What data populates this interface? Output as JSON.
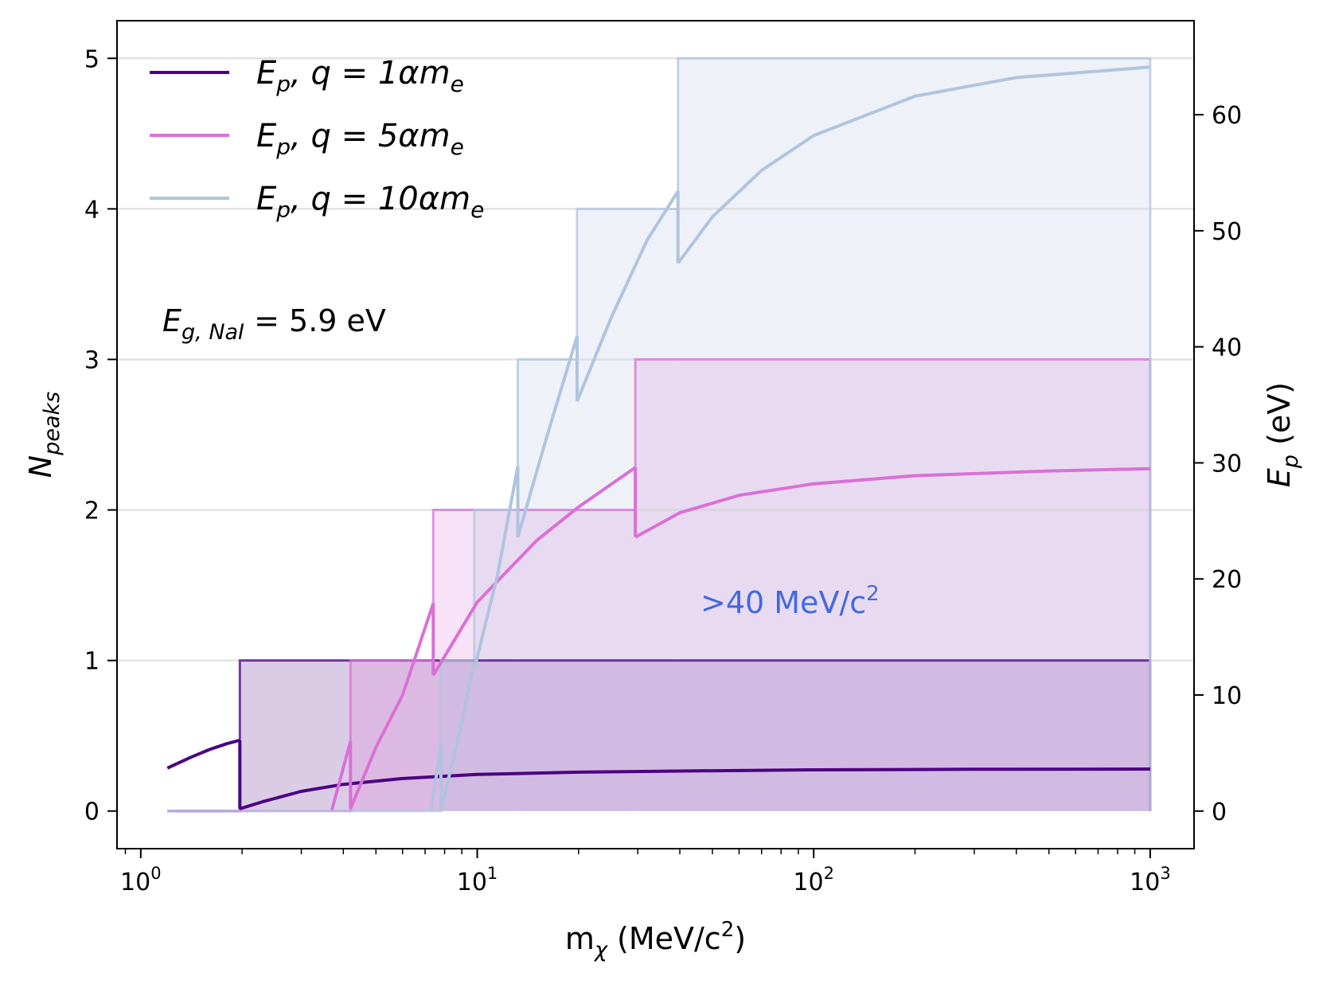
{
  "chart_data": {
    "type": "line",
    "title": "",
    "xlabel": "m_χ (MeV/c²)",
    "xlabel_parts": {
      "main": "m",
      "sub": "χ",
      "rest": " (MeV/c",
      "sup": "2",
      "close": ")"
    },
    "ylabel_left": {
      "main": "N",
      "sub": "peaks"
    },
    "ylabel_right": {
      "main": "E",
      "sub": "p",
      "rest": " (eV)"
    },
    "x_scale": "log",
    "xlim": [
      0.85,
      1350
    ],
    "ylim_left": [
      -0.25,
      5.25
    ],
    "ylim_right": [
      -3.24,
      68.1
    ],
    "x_ticks": [
      {
        "value": 1,
        "base": "10",
        "exp": "0"
      },
      {
        "value": 10,
        "base": "10",
        "exp": "1"
      },
      {
        "value": 100,
        "base": "10",
        "exp": "2"
      },
      {
        "value": 1000,
        "base": "10",
        "exp": "3"
      }
    ],
    "y_ticks_left": [
      "0",
      "1",
      "2",
      "3",
      "4",
      "5"
    ],
    "y_ticks_right": [
      "0",
      "10",
      "20",
      "30",
      "40",
      "50",
      "60"
    ],
    "grid_horizontal": [
      1,
      2,
      3,
      4,
      5
    ],
    "legend": {
      "placement": "top-left",
      "entries": [
        {
          "name": "E_p, q = 1αm_e",
          "prefix": "E",
          "sub": "p",
          "mid": ", q = 1αm",
          "sub2": "e",
          "color": "#4b0082"
        },
        {
          "name": "E_p, q = 5αm_e",
          "prefix": "E",
          "sub": "p",
          "mid": ", q = 5αm",
          "sub2": "e",
          "color": "#da70d6"
        },
        {
          "name": "E_p, q = 10αm_e",
          "prefix": "E",
          "sub": "p",
          "mid": ", q = 10αm",
          "sub2": "e",
          "color": "#b0c4de"
        }
      ]
    },
    "annotations": [
      {
        "id": "gap",
        "main": "E",
        "sub": "g, NaI",
        "rest": " = 5.9 eV",
        "color": "#000000"
      },
      {
        "id": "threshold",
        "text": ">40 MeV/c",
        "sup": "2",
        "color": "#4169e1"
      }
    ],
    "series": [
      {
        "name": "N_peaks, q = 1αm_e",
        "axis": "left",
        "color": "#4b0082",
        "fill_opacity": 0.2,
        "steps": [
          {
            "x_start": 1.2,
            "x_end": 1.97,
            "value": 0
          },
          {
            "x_start": 1.97,
            "x_end": 1000,
            "value": 1
          }
        ]
      },
      {
        "name": "N_peaks, q = 5αm_e",
        "axis": "left",
        "color": "#da70d6",
        "fill_opacity": 0.2,
        "steps": [
          {
            "x_start": 1.2,
            "x_end": 4.2,
            "value": 0
          },
          {
            "x_start": 4.2,
            "x_end": 7.4,
            "value": 1
          },
          {
            "x_start": 7.4,
            "x_end": 29.5,
            "value": 2
          },
          {
            "x_start": 29.5,
            "x_end": 1000,
            "value": 3
          }
        ]
      },
      {
        "name": "N_peaks, q = 10αm_e",
        "axis": "left",
        "color": "#b0c4de",
        "fill_opacity": 0.22,
        "steps": [
          {
            "x_start": 1.2,
            "x_end": 7.8,
            "value": 0
          },
          {
            "x_start": 7.8,
            "x_end": 9.8,
            "value": 1
          },
          {
            "x_start": 9.8,
            "x_end": 13.2,
            "value": 2
          },
          {
            "x_start": 13.2,
            "x_end": 19.8,
            "value": 3
          },
          {
            "x_start": 19.8,
            "x_end": 39.5,
            "value": 4
          },
          {
            "x_start": 39.5,
            "x_end": 1000,
            "value": 5
          }
        ]
      },
      {
        "name": "E_p, q = 1αm_e",
        "axis": "right",
        "color": "#4b0082",
        "segments": [
          [
            [
              1.2,
              3.7
            ],
            [
              1.4,
              4.6
            ],
            [
              1.6,
              5.3
            ],
            [
              1.8,
              5.8
            ],
            [
              1.97,
              6.1
            ]
          ],
          [
            [
              1.97,
              0.2
            ],
            [
              2.3,
              0.8
            ],
            [
              3,
              1.7
            ],
            [
              4,
              2.3
            ],
            [
              6,
              2.8
            ],
            [
              10,
              3.15
            ],
            [
              20,
              3.35
            ],
            [
              40,
              3.45
            ],
            [
              100,
              3.55
            ],
            [
              300,
              3.6
            ],
            [
              1000,
              3.62
            ]
          ]
        ]
      },
      {
        "name": "E_p, q = 5αm_e",
        "axis": "right",
        "color": "#da70d6",
        "segments": [
          [
            [
              3.7,
              0.1
            ],
            [
              4.2,
              6.0
            ]
          ],
          [
            [
              4.2,
              0.2
            ],
            [
              5,
              5.5
            ],
            [
              6,
              10.0
            ],
            [
              7.4,
              17.9
            ]
          ],
          [
            [
              7.4,
              11.7
            ],
            [
              10,
              18.0
            ],
            [
              15,
              23.3
            ],
            [
              20,
              26.2
            ],
            [
              29.5,
              29.6
            ]
          ],
          [
            [
              29.5,
              23.6
            ],
            [
              40,
              25.7
            ],
            [
              60,
              27.2
            ],
            [
              100,
              28.2
            ],
            [
              200,
              28.9
            ],
            [
              500,
              29.3
            ],
            [
              1000,
              29.5
            ]
          ]
        ]
      },
      {
        "name": "E_p, q = 10αm_e",
        "axis": "right",
        "color": "#b0c4de",
        "segments": [
          [
            [
              7.3,
              0.1
            ],
            [
              7.8,
              5.8
            ]
          ],
          [
            [
              7.8,
              0.1
            ],
            [
              8.8,
              6.4
            ],
            [
              9.8,
              12.8
            ]
          ],
          [
            [
              9.8,
              12.2
            ],
            [
              11.5,
              20.4
            ],
            [
              13.2,
              29.7
            ]
          ],
          [
            [
              13.2,
              23.6
            ],
            [
              16,
              32.0
            ],
            [
              19.8,
              40.9
            ]
          ],
          [
            [
              19.8,
              35.3
            ],
            [
              25,
              42.5
            ],
            [
              32,
              49.2
            ],
            [
              39.5,
              53.4
            ]
          ],
          [
            [
              39.5,
              47.2
            ],
            [
              50,
              51.2
            ],
            [
              70,
              55.2
            ],
            [
              100,
              58.2
            ],
            [
              200,
              61.6
            ],
            [
              400,
              63.2
            ],
            [
              1000,
              64.1
            ]
          ]
        ]
      }
    ]
  }
}
